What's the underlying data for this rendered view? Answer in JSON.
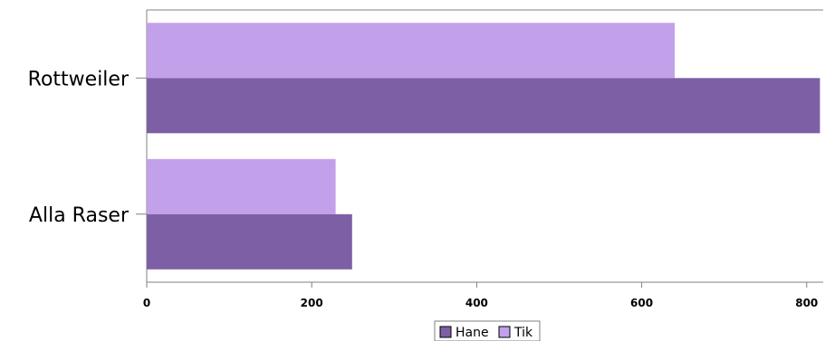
{
  "chart_data": {
    "type": "bar",
    "orientation": "horizontal",
    "categories": [
      "Rottweiler",
      "Alla Raser"
    ],
    "series": [
      {
        "name": "Hane",
        "values": [
          816,
          249
        ],
        "color": "#7d5fa6"
      },
      {
        "name": "Tik",
        "values": [
          640,
          229
        ],
        "color": "#c2a0ea"
      }
    ],
    "xlim": [
      0,
      820
    ],
    "xticks": [
      0,
      200,
      400,
      600,
      800
    ],
    "grid": false,
    "legend_position": "bottom-center"
  }
}
